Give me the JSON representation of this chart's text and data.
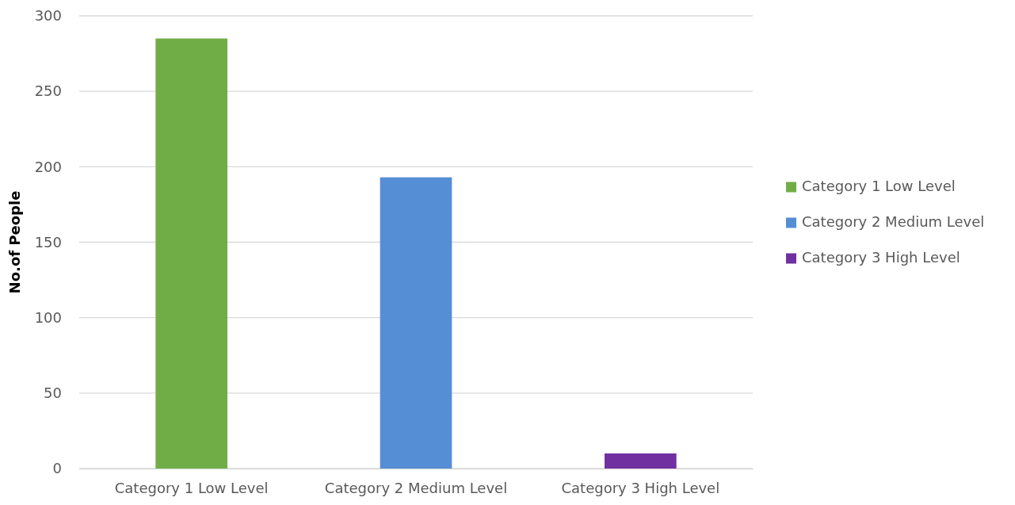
{
  "chart_data": {
    "type": "bar",
    "ylabel": "No.of People",
    "stacked": true,
    "categories": [
      "Category 1 Low Level",
      "Category 2 Medium Level",
      "Category 3 High Level"
    ],
    "series": [
      {
        "name": "Category 1 Low Level",
        "color": "#70ad47",
        "values": [
          285,
          null,
          null
        ]
      },
      {
        "name": "Category 2 Medium Level",
        "color": "#558ed5",
        "values": [
          null,
          193,
          null
        ]
      },
      {
        "name": "Category 3 High Level",
        "color": "#7030a0",
        "values": [
          null,
          null,
          10
        ]
      }
    ],
    "ylim": [
      0,
      300
    ],
    "yticks": [
      0,
      50,
      100,
      150,
      200,
      250,
      300
    ],
    "grid": "y",
    "legend": "right"
  }
}
